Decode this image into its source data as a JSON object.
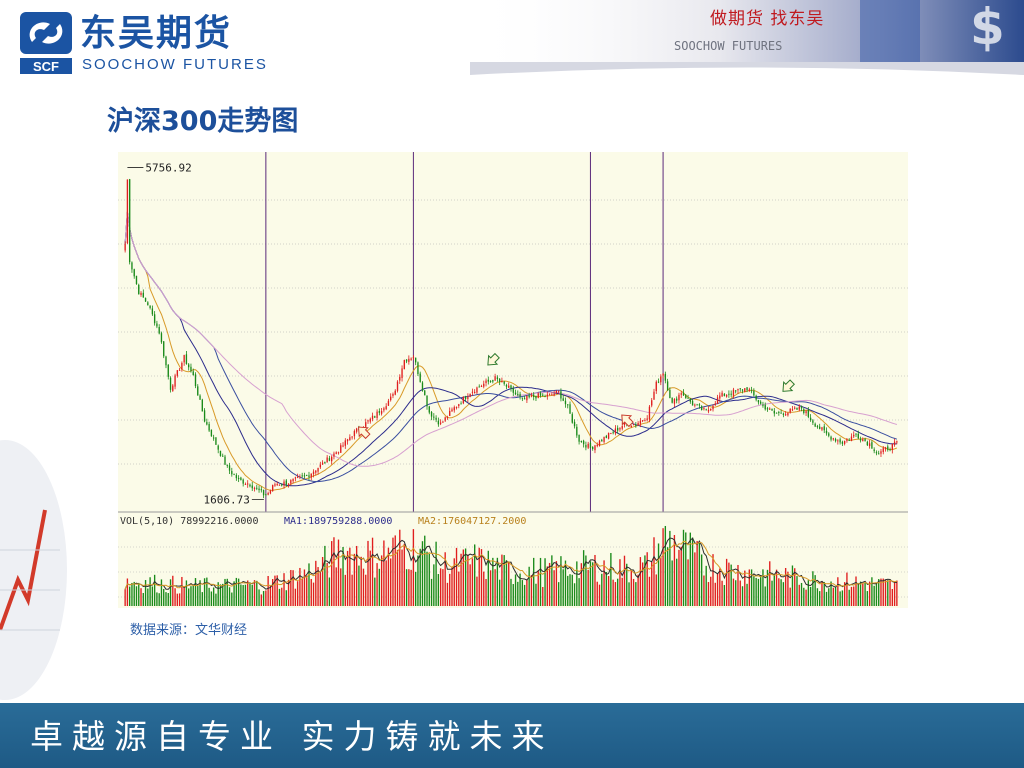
{
  "header": {
    "logo_cn": "东吴期货",
    "logo_en": "SOOCHOW FUTURES",
    "logo_mark_text": "SCF",
    "slogan_cn": "做期货 找东吴",
    "slogan_en": "SOOCHOW FUTURES"
  },
  "title": "沪深300走势图",
  "source": "数据来源：文华财经",
  "footer": {
    "text": "卓越源自专业 实力铸就未来"
  },
  "colors": {
    "brand_blue": "#1b54a3",
    "up": "#e01e1e",
    "down": "#1a8a1a",
    "ma_short": "#d89a28",
    "ma_mid": "#2c2c8c",
    "ma_long": "#d7a0d0",
    "chart_bg": "#fbfbe8",
    "footer_bg": "#1e5a85"
  },
  "chart_data": {
    "type": "candlestick",
    "ylim": [
      1500,
      5900
    ],
    "annotations": {
      "high_label": "5756.92",
      "low_label": "1606.73",
      "high_value": 5756.92,
      "low_value": 1606.73,
      "high_bar": 1,
      "low_bar": 62,
      "vertical_markers_bar": [
        62,
        127,
        205,
        237
      ],
      "arrows": [
        {
          "bar": 105,
          "value": 2450,
          "direction": "up"
        },
        {
          "bar": 162,
          "value": 3350,
          "direction": "down"
        },
        {
          "bar": 221,
          "value": 2600,
          "direction": "up"
        },
        {
          "bar": 292,
          "value": 3020,
          "direction": "down"
        }
      ]
    },
    "close_keypoints": [
      [
        0,
        4800
      ],
      [
        1,
        5500
      ],
      [
        2,
        4600
      ],
      [
        6,
        4200
      ],
      [
        10,
        4050
      ],
      [
        15,
        3700
      ],
      [
        20,
        3000
      ],
      [
        26,
        3380
      ],
      [
        30,
        3150
      ],
      [
        35,
        2600
      ],
      [
        40,
        2300
      ],
      [
        45,
        2000
      ],
      [
        50,
        1850
      ],
      [
        55,
        1800
      ],
      [
        62,
        1650
      ],
      [
        66,
        1800
      ],
      [
        72,
        1820
      ],
      [
        80,
        1900
      ],
      [
        87,
        2050
      ],
      [
        95,
        2250
      ],
      [
        100,
        2420
      ],
      [
        110,
        2650
      ],
      [
        118,
        2900
      ],
      [
        123,
        3350
      ],
      [
        127,
        3400
      ],
      [
        134,
        2700
      ],
      [
        139,
        2550
      ],
      [
        145,
        2750
      ],
      [
        152,
        2950
      ],
      [
        158,
        3050
      ],
      [
        163,
        3120
      ],
      [
        168,
        3020
      ],
      [
        175,
        2850
      ],
      [
        181,
        2900
      ],
      [
        186,
        2900
      ],
      [
        191,
        2950
      ],
      [
        195,
        2750
      ],
      [
        200,
        2350
      ],
      [
        205,
        2250
      ],
      [
        210,
        2350
      ],
      [
        215,
        2450
      ],
      [
        220,
        2550
      ],
      [
        225,
        2550
      ],
      [
        230,
        2650
      ],
      [
        234,
        3050
      ],
      [
        237,
        3200
      ],
      [
        241,
        2800
      ],
      [
        245,
        2950
      ],
      [
        250,
        2800
      ],
      [
        256,
        2700
      ],
      [
        262,
        2900
      ],
      [
        268,
        2950
      ],
      [
        274,
        3000
      ],
      [
        280,
        2800
      ],
      [
        286,
        2680
      ],
      [
        292,
        2700
      ],
      [
        298,
        2750
      ],
      [
        304,
        2550
      ],
      [
        310,
        2400
      ],
      [
        316,
        2320
      ],
      [
        322,
        2420
      ],
      [
        328,
        2300
      ],
      [
        332,
        2180
      ],
      [
        336,
        2250
      ],
      [
        340,
        2310
      ]
    ],
    "volume": {
      "legend": "VOL(5,10) 78992216.0000",
      "ma1_label": "MA1:189759288.0000",
      "ma2_label": "MA2:176047127.2000",
      "ylim": [
        0,
        300000000
      ],
      "keypoints": [
        [
          0,
          100000000
        ],
        [
          30,
          80000000
        ],
        [
          60,
          85000000
        ],
        [
          72,
          110000000
        ],
        [
          85,
          150000000
        ],
        [
          95,
          220000000
        ],
        [
          110,
          200000000
        ],
        [
          120,
          230000000
        ],
        [
          128,
          240000000
        ],
        [
          140,
          160000000
        ],
        [
          155,
          180000000
        ],
        [
          170,
          140000000
        ],
        [
          185,
          140000000
        ],
        [
          205,
          160000000
        ],
        [
          220,
          150000000
        ],
        [
          230,
          160000000
        ],
        [
          238,
          270000000
        ],
        [
          245,
          240000000
        ],
        [
          255,
          170000000
        ],
        [
          270,
          140000000
        ],
        [
          290,
          120000000
        ],
        [
          310,
          100000000
        ],
        [
          330,
          90000000
        ],
        [
          340,
          80000000
        ]
      ]
    },
    "grid": true
  }
}
